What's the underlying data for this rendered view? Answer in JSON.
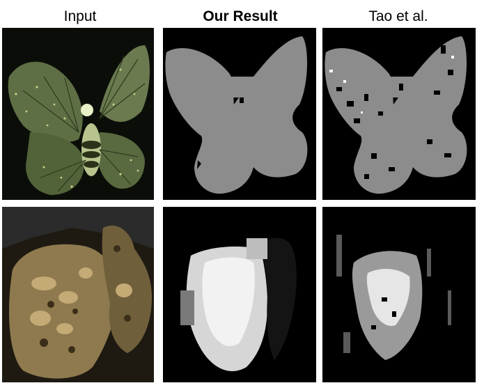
{
  "titles": {
    "input": "Input",
    "ours": "Our Result",
    "tao": "Tao et al."
  },
  "colors": {
    "background": "#ffffff",
    "depth_gray": "#8c8c8c",
    "black": "#000000"
  },
  "panels": [
    {
      "row": "butterfly",
      "column": "input"
    },
    {
      "row": "butterfly",
      "column": "ours"
    },
    {
      "row": "butterfly",
      "column": "tao"
    },
    {
      "row": "statue",
      "column": "input"
    },
    {
      "row": "statue",
      "column": "ours"
    },
    {
      "row": "statue",
      "column": "tao"
    }
  ]
}
